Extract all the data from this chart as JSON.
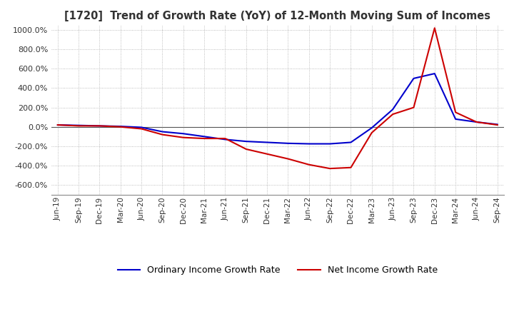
{
  "title": "[1720]  Trend of Growth Rate (YoY) of 12-Month Moving Sum of Incomes",
  "legend_ordinary": "Ordinary Income Growth Rate",
  "legend_net": "Net Income Growth Rate",
  "ordinary_color": "#0000CC",
  "net_color": "#CC0000",
  "background_color": "#FFFFFF",
  "plot_bg_color": "#FFFFFF",
  "ylim": [
    -700,
    1050
  ],
  "yticks": [
    -600,
    -400,
    -200,
    0,
    200,
    400,
    600,
    800,
    1000
  ],
  "dates": [
    "Jun-19",
    "Sep-19",
    "Dec-19",
    "Mar-20",
    "Jun-20",
    "Sep-20",
    "Dec-20",
    "Mar-21",
    "Jun-21",
    "Sep-21",
    "Dec-21",
    "Mar-22",
    "Jun-22",
    "Sep-22",
    "Dec-22",
    "Mar-23",
    "Jun-23",
    "Sep-23",
    "Dec-23",
    "Mar-24",
    "Jun-24",
    "Sep-24"
  ],
  "ordinary_income": [
    20,
    15,
    10,
    5,
    -5,
    -50,
    -70,
    -100,
    -130,
    -150,
    -160,
    -170,
    -175,
    -175,
    -160,
    -10,
    180,
    500,
    550,
    80,
    50,
    25
  ],
  "net_income": [
    20,
    10,
    10,
    0,
    -20,
    -80,
    -110,
    -120,
    -120,
    -230,
    -280,
    -330,
    -390,
    -430,
    -420,
    -60,
    130,
    200,
    1020,
    150,
    50,
    20
  ]
}
